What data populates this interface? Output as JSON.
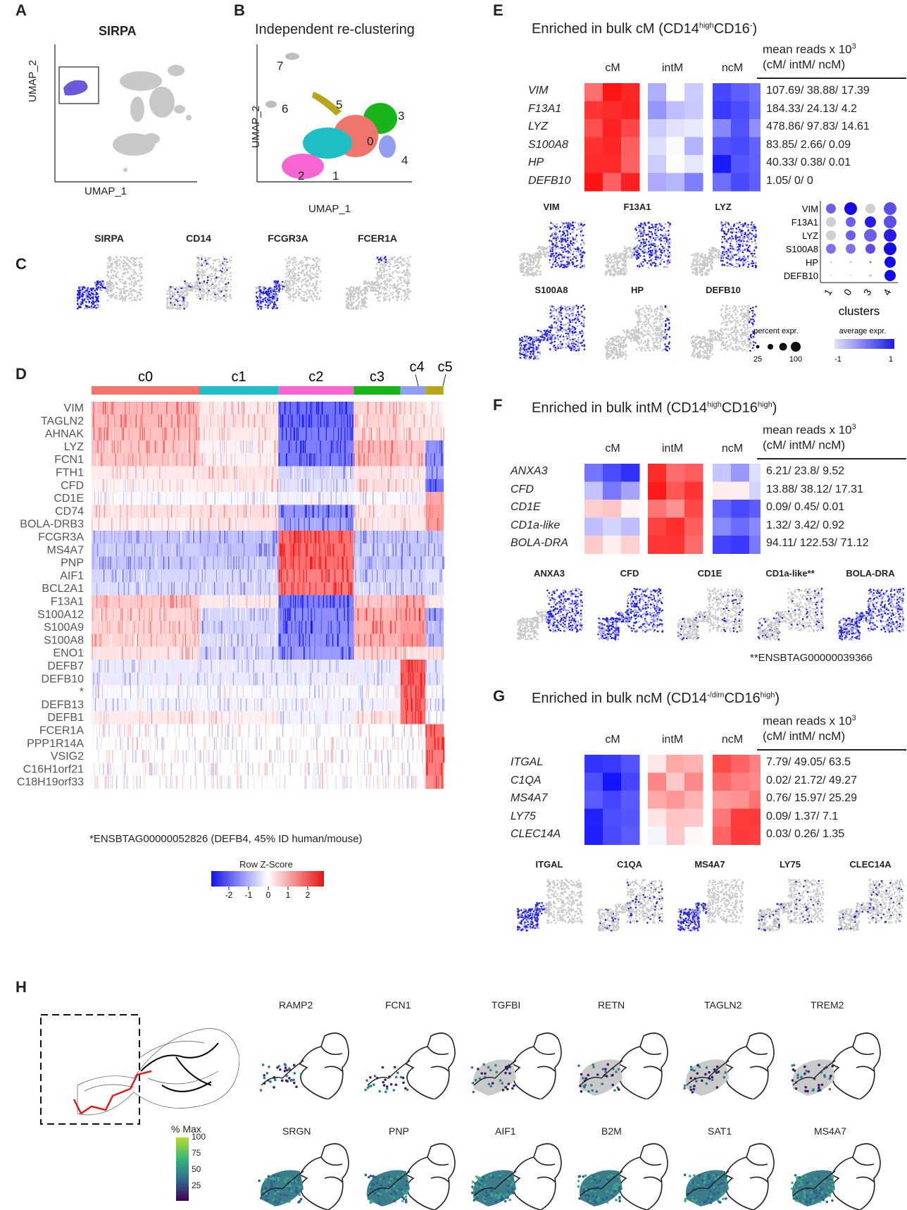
{
  "panels": {
    "A": {
      "letter": "A",
      "title": "SIRPA",
      "xlabel": "UMAP_1",
      "ylabel": "UMAP_2"
    },
    "B": {
      "letter": "B",
      "title": "Independent re-clustering",
      "xlabel": "UMAP_1",
      "ylabel": "UMAP_2",
      "cluster_labels": [
        "7",
        "6",
        "5",
        "3",
        "0",
        "2",
        "1",
        "4"
      ]
    },
    "C": {
      "letter": "C",
      "genes": [
        "SIRPA",
        "CD14",
        "FCGR3A",
        "FCER1A"
      ]
    },
    "D": {
      "letter": "D",
      "clusters": [
        "c0",
        "c1",
        "c2",
        "c3",
        "c4",
        "c5"
      ],
      "cluster_colors": [
        "#f0766d",
        "#1fbec5",
        "#f566d3",
        "#1ab51a",
        "#8f9ef0",
        "#b8a51c"
      ],
      "genes": [
        "VIM",
        "TAGLN2",
        "AHNAK",
        "LYZ",
        "FCN1",
        "FTH1",
        "CFD",
        "CD1E",
        "CD74",
        "BOLA-DRB3",
        "FCGR3A",
        "MS4A7",
        "PNP",
        "AIF1",
        "BCL2A1",
        "F13A1",
        "S100A12",
        "S100A9",
        "S100A8",
        "ENO1",
        "DEFB7",
        "DEFB10",
        "*",
        "DEFB13",
        "DEFB1",
        "FCER1A",
        "PPP1R14A",
        "VSIG2",
        "C16H1orf21",
        "C18H19orf33"
      ],
      "footnote": "*ENSBTAG00000052826 (DEFB4, 45% ID human/mouse)",
      "legend_title": "Row Z-Score",
      "legend_ticks": [
        "-2",
        "-1",
        "0",
        "1",
        "2"
      ]
    },
    "E": {
      "letter": "E",
      "title_pre": "Enriched in bulk cM (CD14",
      "title_sup1": "high",
      "title_mid": "CD16",
      "title_sup2": "-",
      "title_post": ")",
      "col_headers": [
        "cM",
        "intM",
        "ncM"
      ],
      "means_header_1": "mean reads x 10",
      "means_header_sup": "3",
      "means_header_2": "(cM/ intM/ ncM)",
      "genes": [
        "VIM",
        "F13A1",
        "LYZ",
        "S100A8",
        "HP",
        "DEFB10"
      ],
      "means": [
        "107.69/ 38.88/ 17.39",
        "184.33/ 24.13/ 4.2",
        "478.86/ 97.83/ 14.61",
        "83.85/ 2.66/ 0.09",
        "40.33/ 0.38/ 0.01",
        "1.05/ 0/ 0"
      ],
      "umaps": [
        "VIM",
        "F13A1",
        "LYZ",
        "S100A8",
        "HP",
        "DEFB10"
      ],
      "dot_clusters": [
        "1",
        "0",
        "3",
        "4"
      ],
      "dot_xlabel": "clusters",
      "percent_label": "percent expr.",
      "percent_ticks": [
        "25",
        "100"
      ],
      "avg_label": "average expr.",
      "avg_ticks": [
        "-1",
        "1"
      ]
    },
    "F": {
      "letter": "F",
      "title_pre": "Enriched in bulk intM (CD14",
      "title_sup1": "high",
      "title_mid": "CD16",
      "title_sup2": "high",
      "title_post": ")",
      "col_headers": [
        "cM",
        "intM",
        "ncM"
      ],
      "means_header_1": "mean reads x 10",
      "means_header_sup": "3",
      "means_header_2": "(cM/ intM/ ncM)",
      "genes": [
        "ANXA3",
        "CFD",
        "CD1E",
        "CD1a-like",
        "BOLA-DRA"
      ],
      "means": [
        "6.21/ 23.8/ 9.52",
        "13.88/ 38.12/ 17.31",
        "0.09/ 0.45/ 0.01",
        "1.32/ 3.42/ 0.92",
        "94.11/ 122.53/ 71.12"
      ],
      "umaps": [
        "ANXA3",
        "CFD",
        "CD1E",
        "CD1a-like**",
        "BOLA-DRA"
      ],
      "footnote": "**ENSBTAG00000039366"
    },
    "G": {
      "letter": "G",
      "title_pre": "Enriched in bulk ncM (CD14",
      "title_sup1": "-/dim",
      "title_mid": "CD16",
      "title_sup2": "high",
      "title_post": ")",
      "col_headers": [
        "cM",
        "intM",
        "ncM"
      ],
      "means_header_1": "mean reads x 10",
      "means_header_sup": "3",
      "means_header_2": "(cM/ intM/ ncM)",
      "genes": [
        "ITGAL",
        "C1QA",
        "MS4A7",
        "LY75",
        "CLEC14A"
      ],
      "means": [
        "7.79/ 49.05/ 63.5",
        "0.02/ 21.72/ 49.27",
        "0.76/ 15.97/ 25.29",
        "0.09/ 1.37/ 7.1",
        "0.03/ 0.26/ 1.35"
      ],
      "umaps": [
        "ITGAL",
        "C1QA",
        "MS4A7",
        "LY75",
        "CLEC14A"
      ]
    },
    "H": {
      "letter": "H",
      "legend_title": "% Max",
      "legend_ticks": [
        "100",
        "75",
        "50",
        "25"
      ],
      "genes_row1": [
        "RAMP2",
        "FCN1",
        "TGFBI",
        "RETN",
        "TAGLN2",
        "TREM2"
      ],
      "genes_row2": [
        "SRGN",
        "PNP",
        "AIF1",
        "B2M",
        "SAT1",
        "MS4A7"
      ]
    }
  },
  "colors": {
    "blue": "#1f1fe6",
    "red": "#e61e1e",
    "grey": "#bdbdbd"
  }
}
